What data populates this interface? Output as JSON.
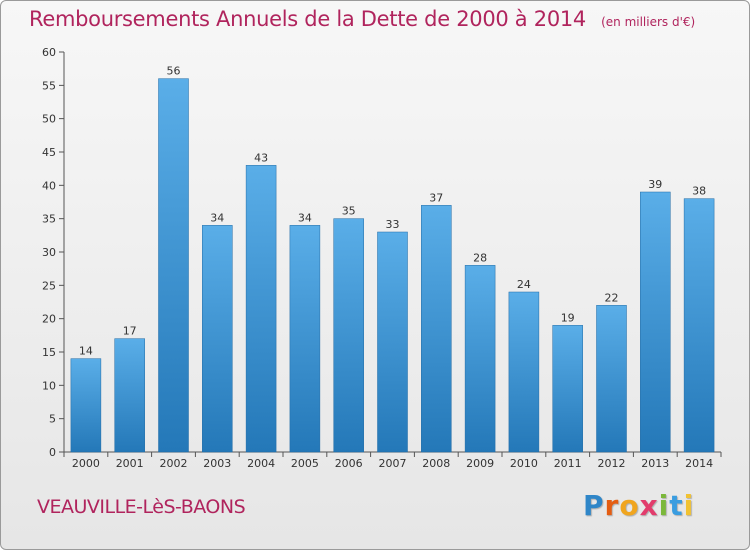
{
  "title": "Remboursements Annuels de la Dette de 2000 à 2014",
  "subtitle": "(en milliers d'€)",
  "commune": "VEAUVILLE-LèS-BAONS",
  "logo": {
    "letters": [
      "P",
      "r",
      "o",
      "x",
      "i",
      "t",
      "i"
    ]
  },
  "colors": {
    "title": "#b0245d",
    "bar_light": "#5aaee8",
    "bar_dark": "#2478b8"
  },
  "chart_data": {
    "type": "bar",
    "title": "Remboursements Annuels de la Dette de 2000 à 2014",
    "subtitle": "(en milliers d'€)",
    "categories": [
      "2000",
      "2001",
      "2002",
      "2003",
      "2004",
      "2005",
      "2006",
      "2007",
      "2008",
      "2009",
      "2010",
      "2011",
      "2012",
      "2013",
      "2014"
    ],
    "values": [
      14,
      17,
      56,
      34,
      43,
      34,
      35,
      33,
      37,
      28,
      24,
      19,
      22,
      39,
      38
    ],
    "xlabel": "",
    "ylabel": "",
    "ylim": [
      0,
      60
    ],
    "yticks": [
      0,
      5,
      10,
      15,
      20,
      25,
      30,
      35,
      40,
      45,
      50,
      55,
      60
    ],
    "grid": false,
    "data_labels": true
  }
}
